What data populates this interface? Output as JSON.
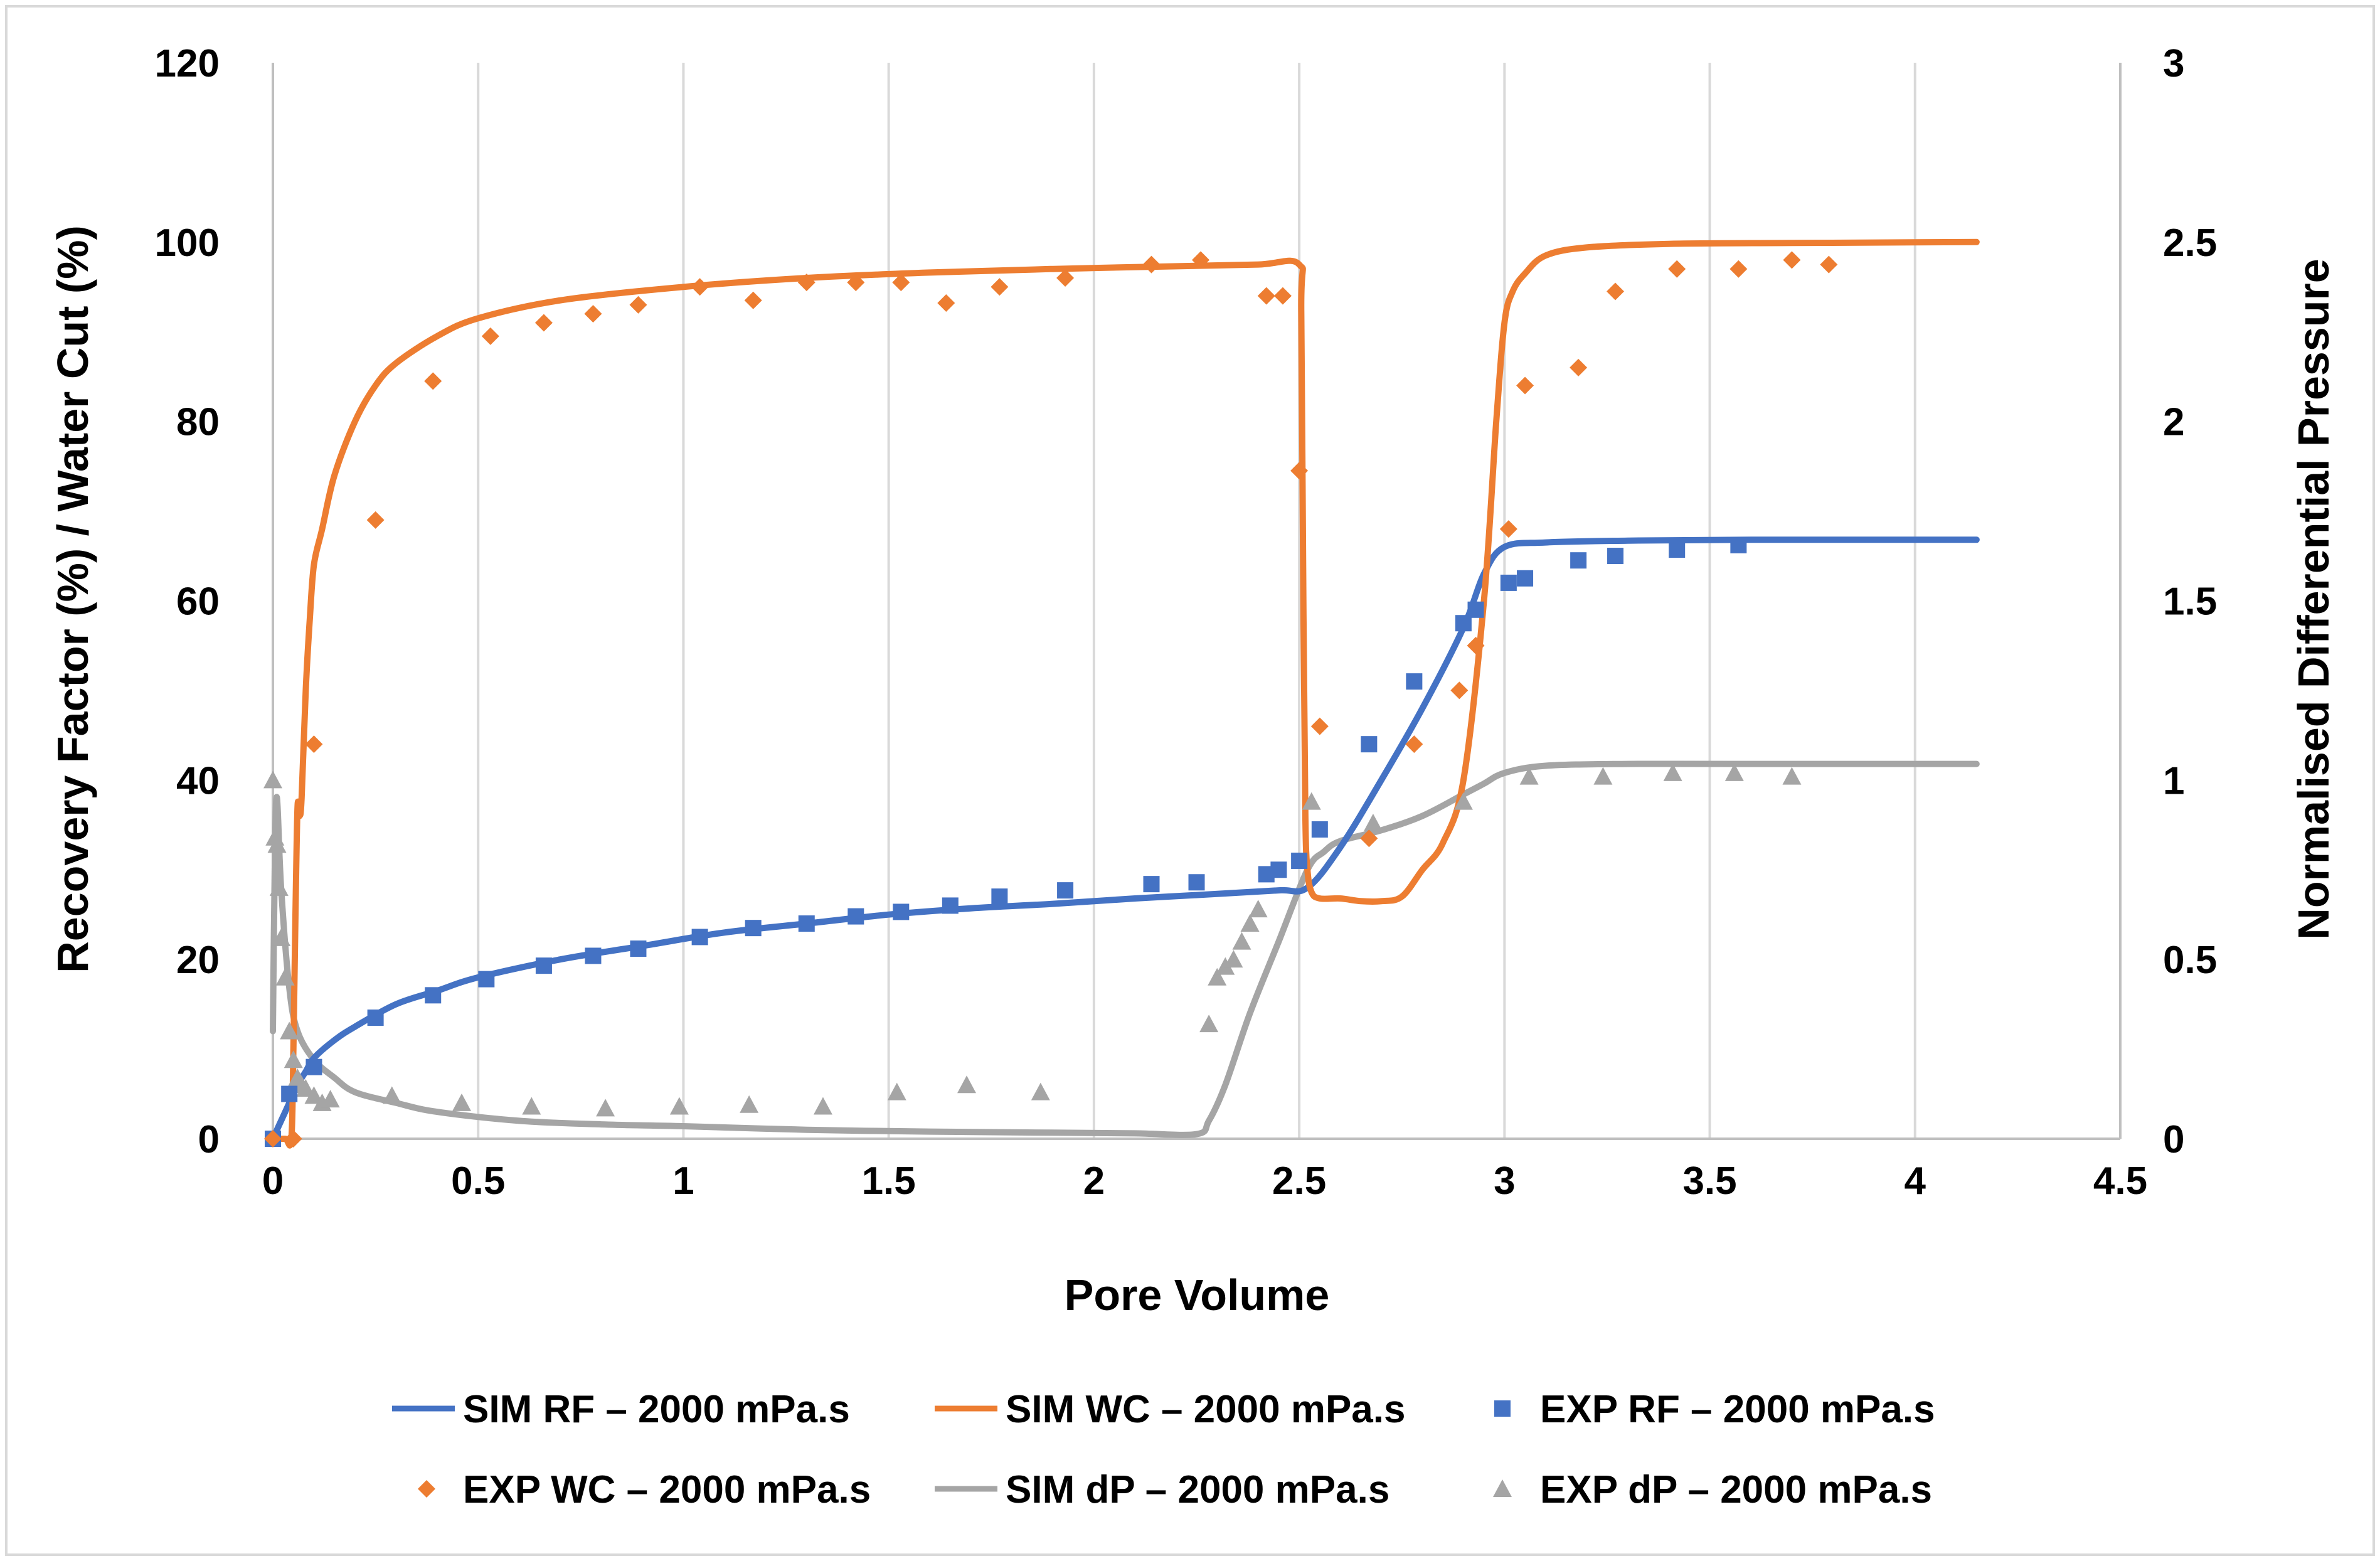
{
  "chart_data": {
    "type": "line",
    "title": "",
    "xlabel": "Pore Volume",
    "ylabel": "Recovery Factor (%) / Water Cut (%)",
    "y2label": "Normalised Differential Pressure",
    "xlim": [
      0,
      4.5
    ],
    "ylim": [
      0,
      120
    ],
    "y2lim": [
      0,
      3
    ],
    "x_ticks": [
      "0",
      "0.5",
      "1",
      "1.5",
      "2",
      "2.5",
      "3",
      "3.5",
      "4",
      "4.5"
    ],
    "y_ticks": [
      "0",
      "20",
      "40",
      "60",
      "80",
      "100",
      "120"
    ],
    "y2_ticks": [
      "0",
      "0.5",
      "1",
      "1.5",
      "2",
      "2.5",
      "3"
    ],
    "grid": "vertical",
    "legend_position": "bottom",
    "colors": {
      "blue": "#4472C4",
      "orange": "#ED7D31",
      "gray": "#A5A5A5"
    },
    "series": [
      {
        "name": "SIM RF – 2000 mPa.s",
        "kind": "line",
        "axis": "left",
        "color": "#4472C4",
        "x": [
          0,
          0.02,
          0.04,
          0.06,
          0.08,
          0.1,
          0.15,
          0.2,
          0.3,
          0.4,
          0.5,
          0.7,
          0.9,
          1.1,
          1.3,
          1.5,
          1.7,
          1.9,
          2.1,
          2.3,
          2.45,
          2.52,
          2.6,
          2.7,
          2.8,
          2.9,
          2.95,
          3.0,
          3.1,
          3.3,
          3.6,
          4.15
        ],
        "y": [
          0,
          2,
          4,
          6,
          7.5,
          9,
          11,
          12.5,
          15,
          16.5,
          18,
          20,
          21.5,
          23,
          24,
          25,
          25.7,
          26.2,
          26.8,
          27.3,
          27.7,
          28,
          32.5,
          40,
          48,
          57,
          63,
          66,
          66.5,
          66.7,
          66.8,
          66.8
        ]
      },
      {
        "name": "SIM WC – 2000 mPa.s",
        "kind": "line",
        "axis": "left",
        "color": "#ED7D31",
        "x": [
          0,
          0.03,
          0.045,
          0.05,
          0.055,
          0.06,
          0.065,
          0.07,
          0.08,
          0.09,
          0.1,
          0.12,
          0.15,
          0.2,
          0.25,
          0.3,
          0.4,
          0.5,
          0.7,
          1.0,
          1.3,
          1.6,
          1.9,
          2.2,
          2.4,
          2.5,
          2.505,
          2.51,
          2.515,
          2.52,
          2.53,
          2.55,
          2.6,
          2.65,
          2.7,
          2.75,
          2.8,
          2.85,
          2.9,
          2.95,
          2.98,
          3.0,
          3.02,
          3.05,
          3.1,
          3.2,
          3.4,
          3.7,
          4.15
        ],
        "y": [
          0,
          0,
          0,
          10,
          25,
          37,
          36,
          38,
          50,
          58,
          64,
          68,
          74,
          80,
          84,
          86.5,
          89.5,
          91.5,
          93.5,
          95,
          96,
          96.6,
          97,
          97.3,
          97.5,
          97.5,
          92,
          60,
          36,
          30,
          27.5,
          26.8,
          26.8,
          26.5,
          26.5,
          27,
          30,
          33,
          40,
          60,
          80,
          91,
          94.5,
          96.5,
          98.5,
          99.4,
          99.8,
          99.9,
          100
        ]
      },
      {
        "name": "EXP RF – 2000 mPa.s",
        "kind": "square",
        "axis": "left",
        "color": "#4472C4",
        "x": [
          0,
          0.04,
          0.1,
          0.25,
          0.39,
          0.52,
          0.66,
          0.78,
          0.89,
          1.04,
          1.17,
          1.3,
          1.42,
          1.53,
          1.65,
          1.77,
          1.93,
          2.14,
          2.25,
          2.42,
          2.45,
          2.5,
          2.55,
          2.67,
          2.78,
          2.9,
          2.93,
          3.01,
          3.05,
          3.18,
          3.27,
          3.42,
          3.57
        ],
        "y": [
          0,
          5,
          8,
          13.5,
          16,
          17.8,
          19.3,
          20.4,
          21.2,
          22.5,
          23.5,
          24,
          24.8,
          25.3,
          26,
          27,
          27.7,
          28.4,
          28.6,
          29.5,
          30,
          31,
          34.5,
          44,
          51,
          57.5,
          59,
          62,
          62.5,
          64.5,
          65,
          65.7,
          66.2
        ]
      },
      {
        "name": "EXP WC – 2000 mPa.s",
        "kind": "diamond",
        "axis": "left",
        "color": "#ED7D31",
        "x": [
          0,
          0.05,
          0.1,
          0.25,
          0.39,
          0.53,
          0.66,
          0.78,
          0.89,
          1.04,
          1.17,
          1.3,
          1.42,
          1.53,
          1.64,
          1.77,
          1.93,
          2.14,
          2.26,
          2.42,
          2.46,
          2.5,
          2.55,
          2.67,
          2.78,
          2.89,
          2.93,
          3.01,
          3.05,
          3.18,
          3.27,
          3.42,
          3.57,
          3.7,
          3.79
        ],
        "y": [
          0,
          0,
          44,
          69,
          84.5,
          89.5,
          91,
          92,
          93,
          95,
          93.5,
          95.5,
          95.5,
          95.5,
          93.2,
          95,
          96,
          97.5,
          98,
          94,
          94,
          74.5,
          46,
          33.5,
          44,
          50,
          55,
          68,
          84,
          86,
          94.5,
          97,
          97,
          98,
          97.5
        ]
      },
      {
        "name": "SIM dP – 2000 mPa.s",
        "kind": "line",
        "axis": "right",
        "color": "#A5A5A5",
        "x": [
          0,
          0.005,
          0.01,
          0.02,
          0.04,
          0.06,
          0.1,
          0.15,
          0.2,
          0.3,
          0.4,
          0.6,
          0.8,
          1.0,
          1.3,
          1.6,
          1.9,
          2.1,
          2.25,
          2.28,
          2.32,
          2.38,
          2.45,
          2.52,
          2.56,
          2.6,
          2.7,
          2.8,
          2.9,
          2.95,
          3.0,
          3.1,
          3.3,
          3.6,
          4.15
        ],
        "y": [
          0.3,
          0.8,
          0.95,
          0.7,
          0.42,
          0.3,
          0.22,
          0.17,
          0.13,
          0.1,
          0.075,
          0.05,
          0.04,
          0.035,
          0.025,
          0.02,
          0.017,
          0.015,
          0.013,
          0.05,
          0.15,
          0.35,
          0.55,
          0.75,
          0.8,
          0.83,
          0.86,
          0.9,
          0.96,
          0.99,
          1.02,
          1.04,
          1.045,
          1.045,
          1.045
        ]
      },
      {
        "name": "EXP dP – 2000 mPa.s",
        "kind": "triangle",
        "axis": "right",
        "color": "#A5A5A5",
        "x": [
          0,
          0.005,
          0.01,
          0.015,
          0.02,
          0.03,
          0.04,
          0.05,
          0.06,
          0.07,
          0.08,
          0.1,
          0.12,
          0.14,
          0.29,
          0.46,
          0.63,
          0.81,
          0.99,
          1.16,
          1.34,
          1.52,
          1.69,
          1.87,
          2.28,
          2.3,
          2.32,
          2.34,
          2.36,
          2.38,
          2.4,
          2.53,
          2.68,
          2.9,
          3.06,
          3.24,
          3.41,
          3.56,
          3.7
        ],
        "y": [
          1.0,
          0.84,
          0.82,
          0.7,
          0.56,
          0.45,
          0.3,
          0.22,
          0.17,
          0.15,
          0.14,
          0.12,
          0.1,
          0.11,
          0.12,
          0.1,
          0.09,
          0.085,
          0.09,
          0.095,
          0.09,
          0.13,
          0.15,
          0.13,
          0.32,
          0.45,
          0.48,
          0.5,
          0.55,
          0.6,
          0.64,
          0.94,
          0.88,
          0.94,
          1.01,
          1.01,
          1.02,
          1.02,
          1.01
        ]
      }
    ]
  }
}
